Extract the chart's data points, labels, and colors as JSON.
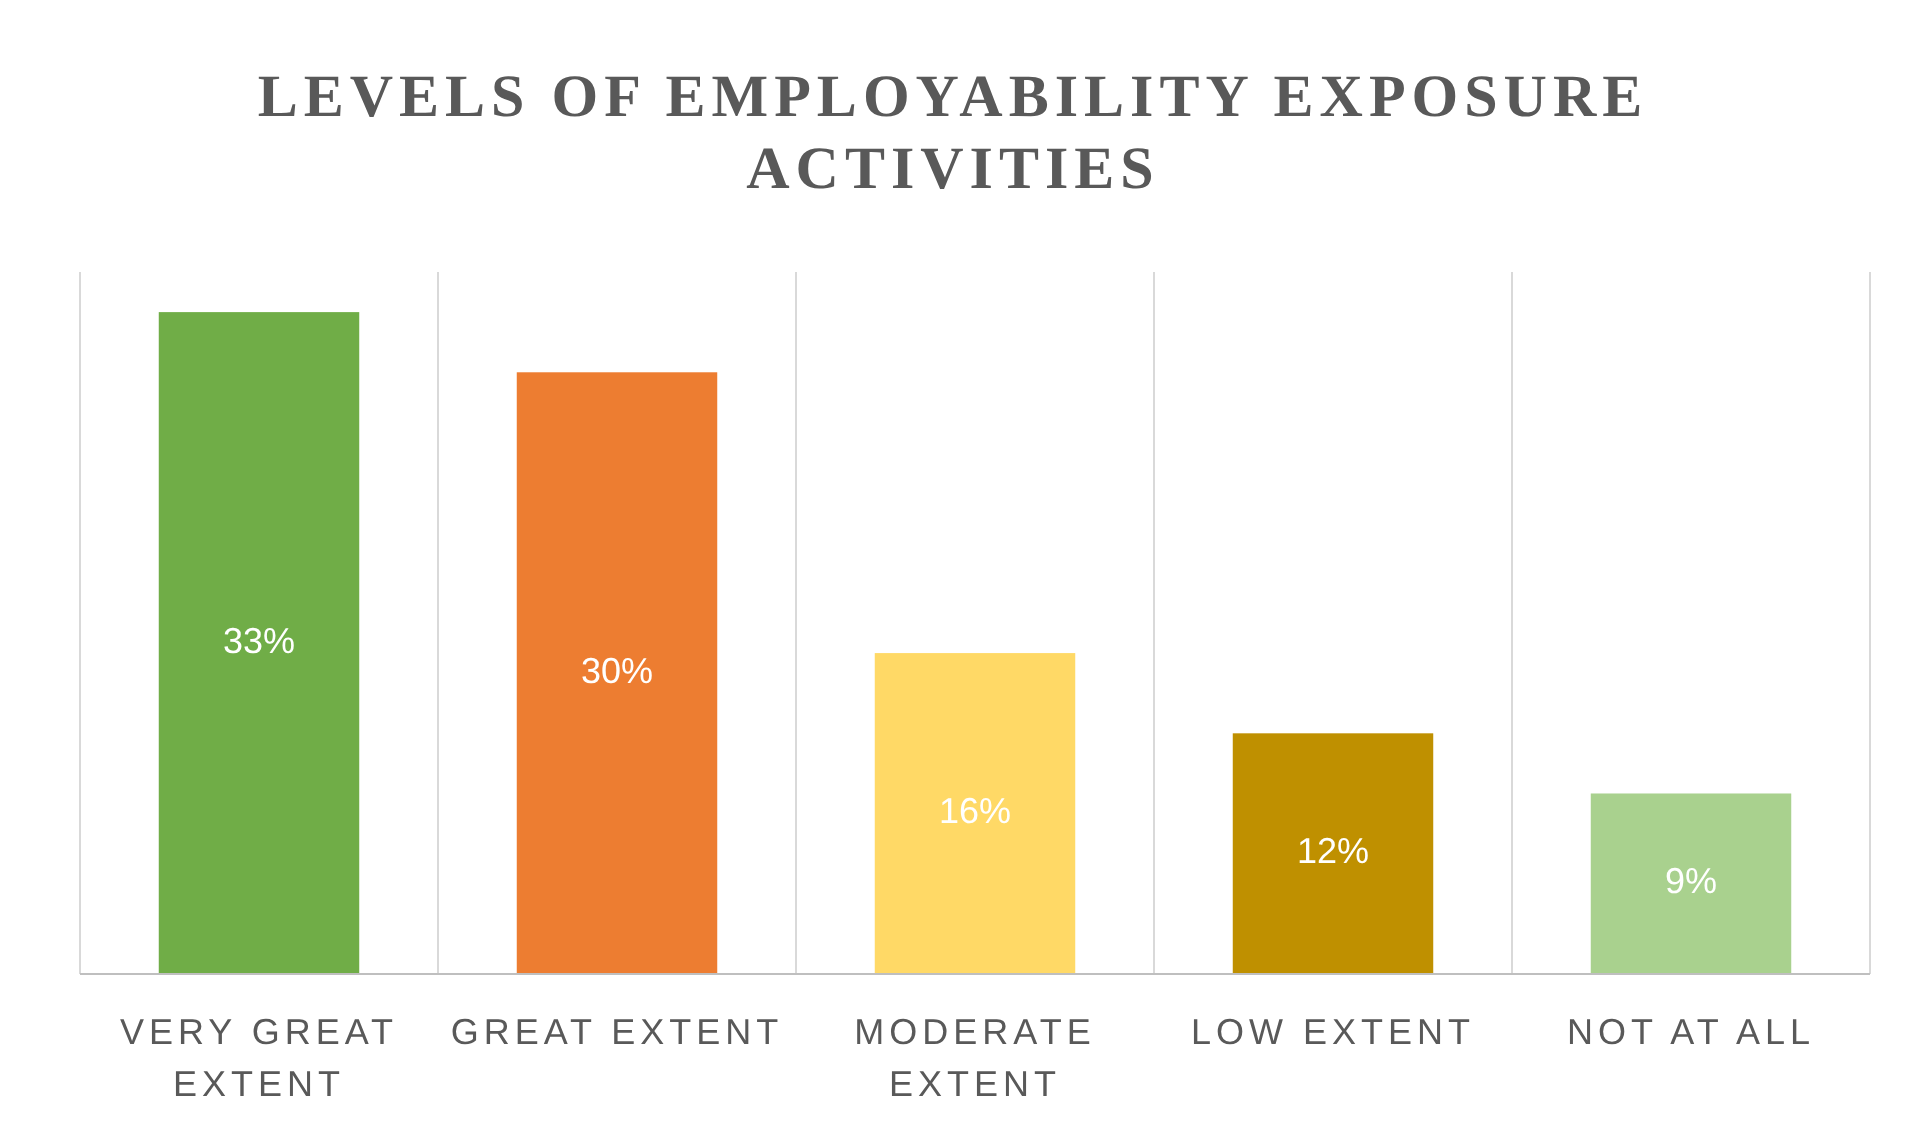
{
  "chart_data": {
    "type": "bar",
    "title": "LEVELS OF EMPLOYABILITY EXPOSURE ACTIVITIES",
    "categories": [
      "VERY GREAT EXTENT",
      "GREAT EXTENT",
      "MODERATE EXTENT",
      "LOW EXTENT",
      "NOT AT ALL"
    ],
    "values": [
      33,
      30,
      16,
      12,
      9
    ],
    "colors": [
      "#70ad47",
      "#ed7d31",
      "#ffd966",
      "#bf9000",
      "#a9d18e"
    ],
    "value_labels": [
      "33%",
      "30%",
      "16%",
      "12%",
      "9%"
    ],
    "ylim": [
      0,
      35
    ],
    "grid": "x"
  }
}
